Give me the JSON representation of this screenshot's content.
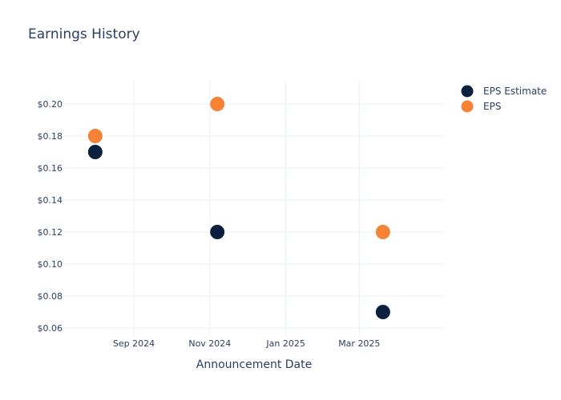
{
  "chart_data": {
    "type": "scatter",
    "title": "Earnings History",
    "xlabel": "Announcement Date",
    "ylabel": "",
    "x_tick_labels": [
      "Sep 2024",
      "Nov 2024",
      "Jan 2025",
      "Mar 2025"
    ],
    "x_tick_dates": [
      "2024-09-01",
      "2024-11-01",
      "2025-01-01",
      "2025-03-01"
    ],
    "xlim": [
      "2024-07-07",
      "2025-05-08"
    ],
    "y_tick_labels": [
      "$0.06",
      "$0.08",
      "$0.10",
      "$0.12",
      "$0.14",
      "$0.16",
      "$0.18",
      "$0.20"
    ],
    "y_tick_values": [
      0.06,
      0.08,
      0.1,
      0.12,
      0.14,
      0.16,
      0.18,
      0.2
    ],
    "ylim": [
      0.055,
      0.215
    ],
    "grid": true,
    "legend_position": "top-right",
    "series": [
      {
        "name": "EPS Estimate",
        "color": "#0b1f3f",
        "points": [
          {
            "x": "2024-08-01",
            "y": 0.17
          },
          {
            "x": "2024-11-07",
            "y": 0.12
          },
          {
            "x": "2025-03-20",
            "y": 0.07
          }
        ]
      },
      {
        "name": "EPS",
        "color": "#f58235",
        "points": [
          {
            "x": "2024-08-01",
            "y": 0.18
          },
          {
            "x": "2024-11-07",
            "y": 0.2
          },
          {
            "x": "2025-03-20",
            "y": 0.12
          }
        ]
      }
    ]
  }
}
